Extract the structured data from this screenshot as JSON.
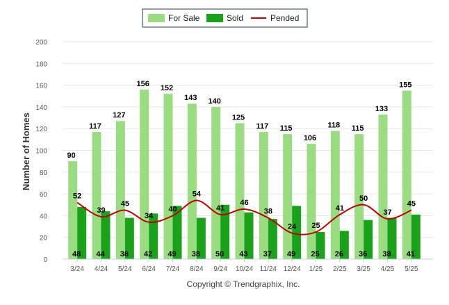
{
  "chart_data": {
    "type": "bar",
    "categories": [
      "3/24",
      "4/24",
      "5/24",
      "6/24",
      "7/24",
      "8/24",
      "9/24",
      "10/24",
      "11/24",
      "12/24",
      "1/25",
      "2/25",
      "3/25",
      "4/25",
      "5/25"
    ],
    "series": [
      {
        "name": "For Sale",
        "kind": "bar",
        "color": "#99dd80",
        "values": [
          90,
          117,
          127,
          156,
          152,
          143,
          140,
          125,
          117,
          115,
          106,
          118,
          115,
          133,
          155
        ]
      },
      {
        "name": "Sold",
        "kind": "bar",
        "color": "#1aa21a",
        "values": [
          48,
          44,
          38,
          42,
          49,
          38,
          50,
          43,
          37,
          49,
          25,
          26,
          36,
          38,
          41
        ]
      },
      {
        "name": "Pended",
        "kind": "line",
        "color": "#c00000",
        "values": [
          52,
          39,
          45,
          34,
          40,
          54,
          41,
          46,
          38,
          24,
          25,
          41,
          50,
          37,
          45
        ]
      }
    ],
    "xlabel": "",
    "ylabel": "Number of Homes",
    "ylim": [
      0,
      200
    ],
    "yticks": [
      0,
      20,
      40,
      60,
      80,
      100,
      120,
      140,
      160,
      180,
      200
    ],
    "grid": true,
    "legend_position": "top-center"
  },
  "footer": "Copyright © Trendgraphix, Inc."
}
